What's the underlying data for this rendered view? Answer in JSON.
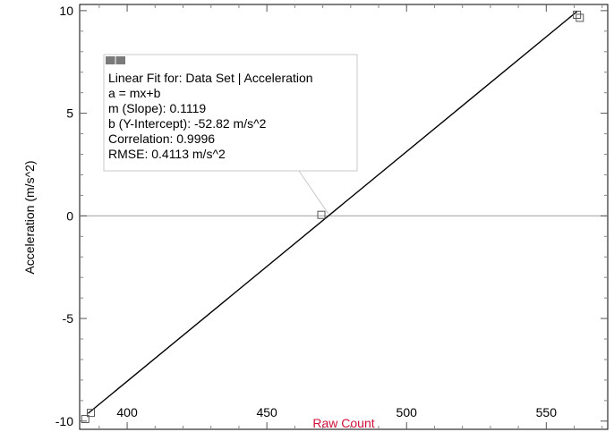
{
  "chart_data": {
    "type": "scatter",
    "xlabel": "Raw Count",
    "ylabel": "Acceleration (m/s^2)",
    "xlim": [
      383,
      572
    ],
    "ylim": [
      -10.4,
      10.3
    ],
    "x_ticks": [
      400,
      450,
      500,
      550
    ],
    "y_ticks": [
      -10,
      -5,
      0,
      5,
      10
    ],
    "x_minor_step": 10,
    "y_minor_step": 1,
    "grid": "y=0 reference line only",
    "series": [
      {
        "points": [
          {
            "x": 385,
            "y": -9.9
          },
          {
            "x": 387,
            "y": -9.6
          },
          {
            "x": 469.5,
            "y": 0.05
          },
          {
            "x": 561,
            "y": 9.8
          },
          {
            "x": 562,
            "y": 9.65
          }
        ]
      }
    ],
    "fit": {
      "slope": 0.1119,
      "intercept": -52.82,
      "x_range": [
        386,
        561
      ]
    },
    "annotation": {
      "lines": [
        "Linear Fit for: Data Set | Acceleration",
        "a = mx+b",
        "m (Slope): 0.1119",
        "b (Y-Intercept): -52.82 m/s^2",
        "Correlation: 0.9996",
        "RMSE: 0.4113 m/s^2"
      ],
      "anchor": {
        "x": 472,
        "y": 0.1
      }
    },
    "colors": {
      "xlabel": "#d0103a",
      "ylabel": "#000000",
      "fit_line": "#000000",
      "zero_line": "#b4b4b4",
      "callout": "#c8c8c8"
    }
  }
}
